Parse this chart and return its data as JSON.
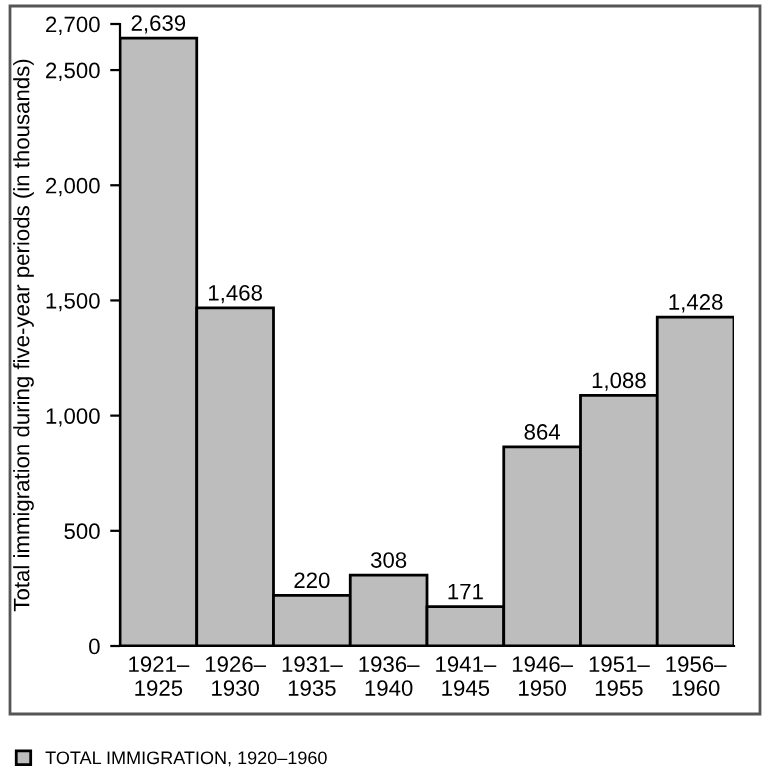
{
  "chart_data": {
    "type": "bar",
    "ylabel": "Total immigration during five-year periods (in thousands)",
    "categories": [
      "1921–\n1925",
      "1926–\n1930",
      "1931–\n1935",
      "1936–\n1940",
      "1941–\n1945",
      "1946–\n1950",
      "1951–\n1955",
      "1956–\n1960"
    ],
    "series": [
      {
        "name": "TOTAL IMMIGRATION, 1920–1960",
        "color": "#bdbdbd",
        "values": [
          2639,
          1468,
          220,
          308,
          171,
          864,
          1088,
          1428
        ]
      }
    ],
    "ylim": [
      0,
      2700
    ],
    "yticks": [
      {
        "value": 0,
        "label": "0"
      },
      {
        "value": 500,
        "label": "500"
      },
      {
        "value": 1000,
        "label": "1,000"
      },
      {
        "value": 1500,
        "label": "1,500"
      },
      {
        "value": 2000,
        "label": "2,000"
      },
      {
        "value": 2500,
        "label": "2,500"
      },
      {
        "value": 2700,
        "label": "2,700"
      }
    ],
    "value_labels": [
      "2,639",
      "1,468",
      "220",
      "308",
      "171",
      "864",
      "1,088",
      "1,428"
    ],
    "legend": "bottom left",
    "grid": false
  }
}
